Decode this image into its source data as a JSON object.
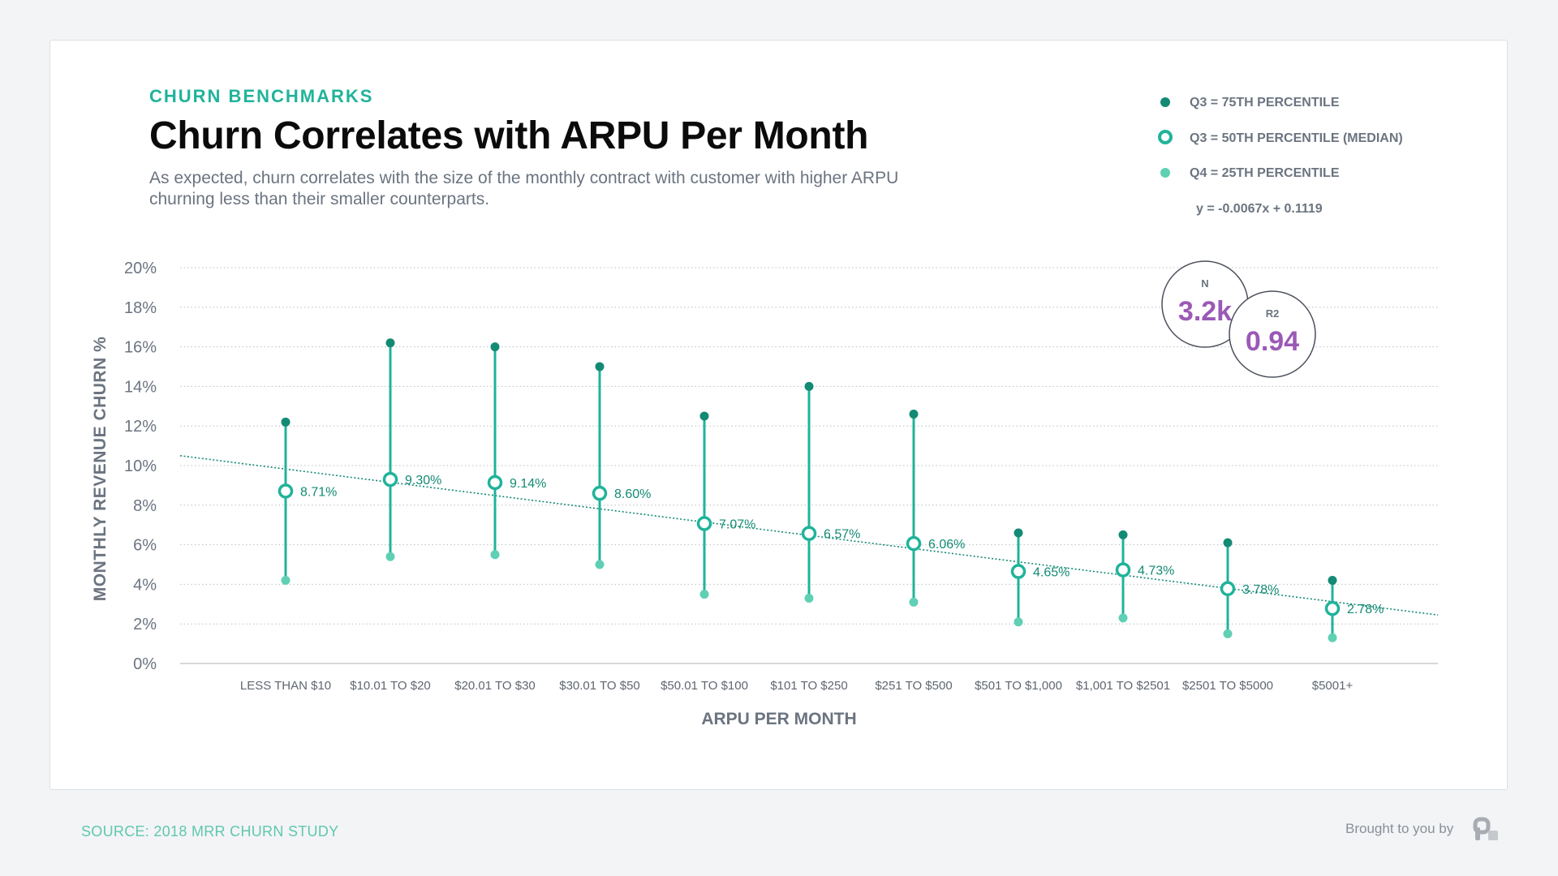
{
  "header": {
    "eyebrow": "CHURN BENCHMARKS",
    "title": "Churn Correlates with ARPU Per Month",
    "subtitle": "As expected, churn correlates with the size of the monthly contract with customer with higher ARPU churning less than their smaller counterparts."
  },
  "footer": {
    "source": "SOURCE: 2018 MRR CHURN STUDY",
    "brand": "Brought to you by",
    "brand_logo_icon": "profitwell-logo-icon"
  },
  "stats": {
    "n_label": "N",
    "n_value": "3.2k",
    "r2_label": "R2",
    "r2_value": "0.94"
  },
  "colors": {
    "accent": "#20b39a",
    "q75": "#138a74",
    "q25": "#5fd0b3",
    "stat_value": "#9b59b6",
    "trend": "#138a74"
  },
  "chart_data": {
    "type": "scatter",
    "title": "Churn Correlates with ARPU Per Month",
    "xlabel": "ARPU PER MONTH",
    "ylabel": "MONTHLY REVENUE CHURN %",
    "ylim": [
      0,
      20
    ],
    "y_ticks": [
      "0%",
      "2%",
      "4%",
      "6%",
      "8%",
      "10%",
      "12%",
      "14%",
      "16%",
      "18%",
      "20%"
    ],
    "categories": [
      "LESS THAN $10",
      "$10.01 TO $20",
      "$20.01 TO $30",
      "$30.01 TO $50",
      "$50.01 TO $100",
      "$101 TO $250",
      "$251 TO $500",
      "$501 TO $1,000",
      "$1,001 TO $2501",
      "$2501 TO $5000",
      "$5001+"
    ],
    "series": [
      {
        "name": "Q3 = 75TH PERCENTILE",
        "values": [
          12.2,
          16.2,
          16.0,
          15.0,
          12.5,
          14.0,
          12.6,
          6.6,
          6.5,
          6.1,
          4.2
        ]
      },
      {
        "name": "Q3 = 50TH PERCENTILE (MEDIAN)",
        "values": [
          8.71,
          9.3,
          9.14,
          8.6,
          7.07,
          6.57,
          6.06,
          4.65,
          4.73,
          3.78,
          2.78
        ]
      },
      {
        "name": "Q4 = 25TH PERCENTILE",
        "values": [
          4.2,
          5.4,
          5.5,
          5.0,
          3.5,
          3.3,
          3.1,
          2.1,
          2.3,
          1.5,
          1.3
        ]
      }
    ],
    "median_labels": [
      "8.71%",
      "9.30%",
      "9.14%",
      "8.60%",
      "7.07%",
      "6.57%",
      "6.06%",
      "4.65%",
      "4.73%",
      "3.78%",
      "2.78%"
    ],
    "trendline": {
      "label": "y = -0.0067x + 0.1119",
      "start": 10.5,
      "end": 2.45
    },
    "grid": true,
    "legend_position": "top-right"
  }
}
